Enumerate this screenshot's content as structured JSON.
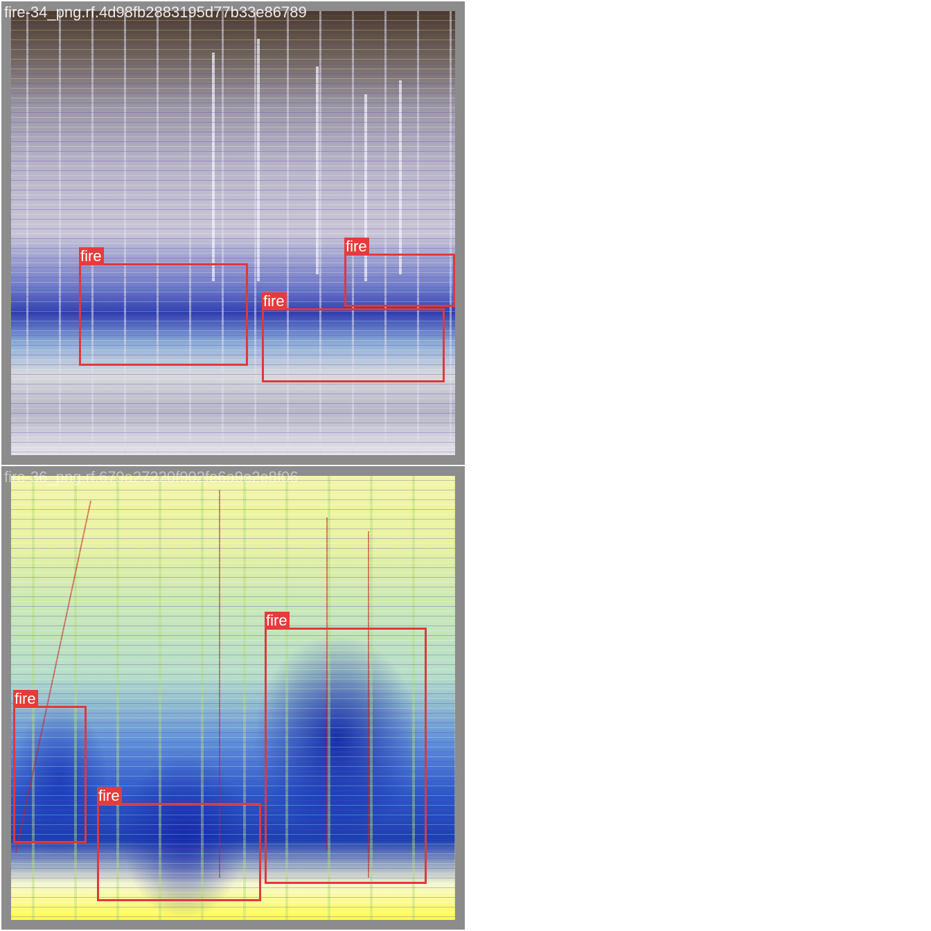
{
  "tiles": [
    {
      "filename": "fire-34_png.rf.4d98fb2883195d77b33e86789",
      "detections": [
        {
          "label": "fire"
        },
        {
          "label": "fire"
        },
        {
          "label": "fire"
        }
      ]
    },
    {
      "filename": "fire-36_png.rf.679a27220f902fe6a9e2e8f06",
      "detections": [
        {
          "label": "fire"
        },
        {
          "label": "fire"
        },
        {
          "label": "fire"
        }
      ]
    }
  ],
  "colors": {
    "box": "#e0383b",
    "label_bg": "#e63a3c",
    "tile_border": "#8c8c8c"
  }
}
